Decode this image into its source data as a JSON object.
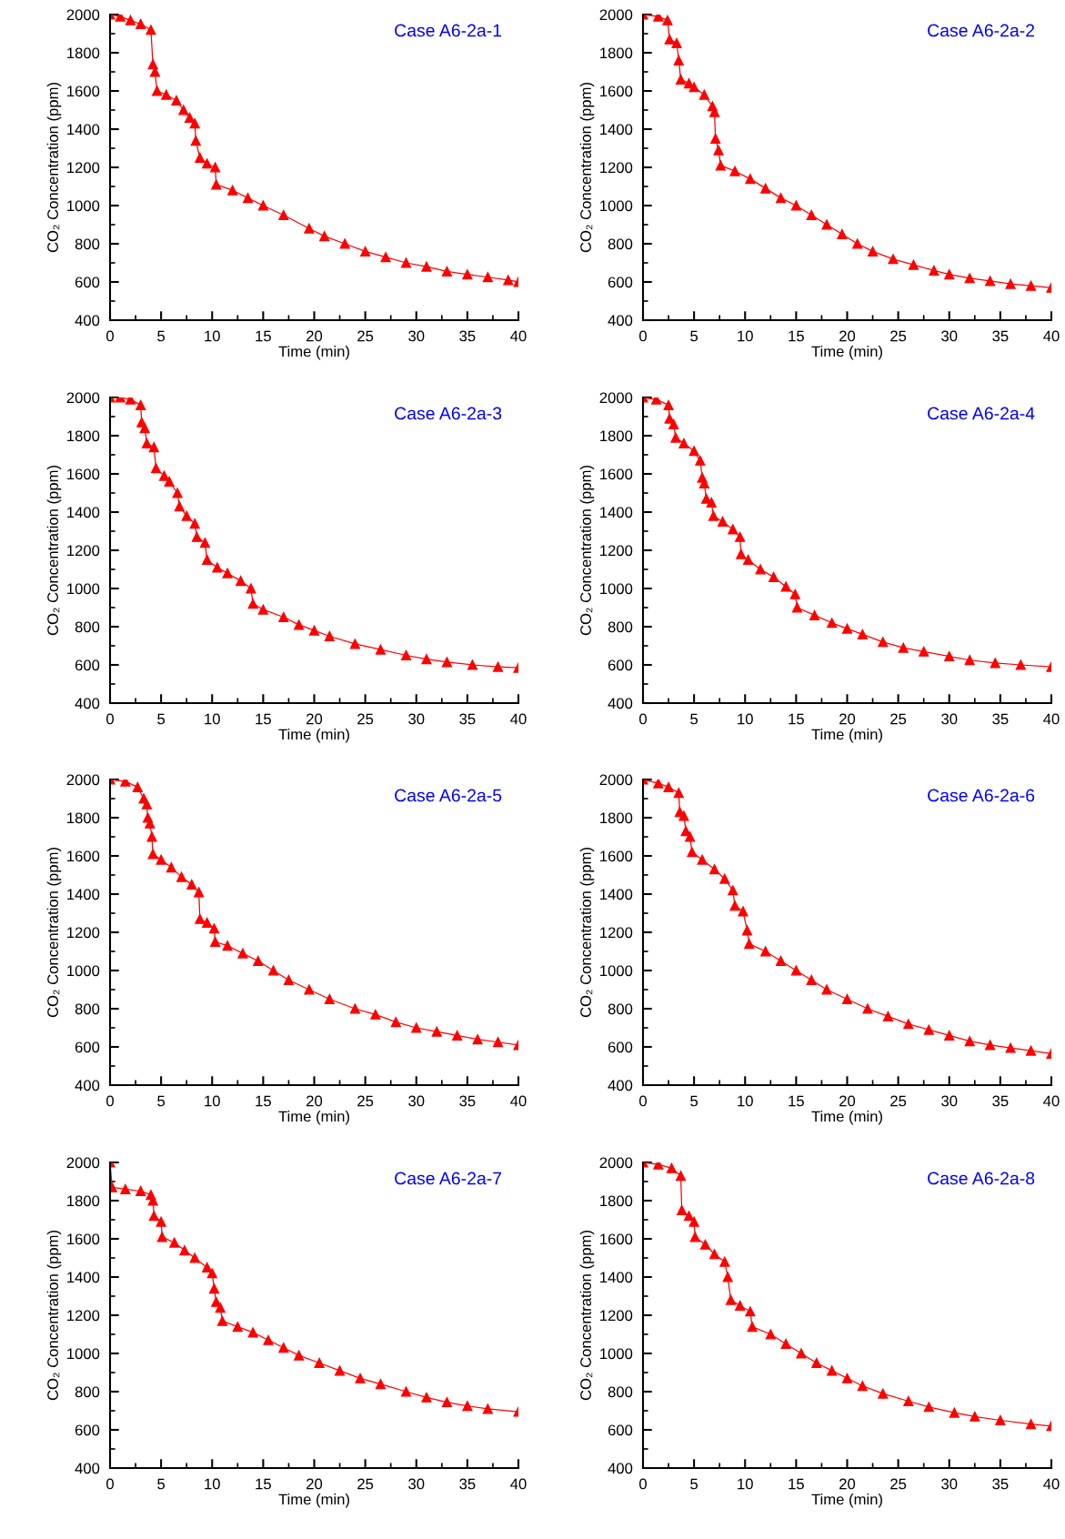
{
  "chart_data": [
    {
      "type": "line",
      "title": "Case A6-2a-1",
      "xlabel": "Time (min)",
      "ylabel": "CO₂ Concentration (ppm)",
      "marker": "triangle",
      "xlim": [
        0,
        40
      ],
      "xticks": [
        0,
        5,
        10,
        15,
        20,
        25,
        30,
        35,
        40
      ],
      "ylim": [
        400,
        2000
      ],
      "yticks": [
        400,
        600,
        800,
        1000,
        1200,
        1400,
        1600,
        1800,
        2000
      ],
      "series": [
        {
          "color": "#ff0000",
          "x": [
            0,
            1,
            2,
            3,
            4,
            4.2,
            4.4,
            4.6,
            5.5,
            6.5,
            7.2,
            7.8,
            8.3,
            8.4,
            8.8,
            9.5,
            10.3,
            10.4,
            12,
            13.5,
            15,
            17,
            19.5,
            21,
            23,
            25,
            27,
            29,
            31,
            33,
            35,
            37,
            39,
            40
          ],
          "values": [
            2000,
            1990,
            1970,
            1950,
            1920,
            1740,
            1700,
            1600,
            1580,
            1550,
            1500,
            1460,
            1430,
            1340,
            1250,
            1220,
            1200,
            1110,
            1080,
            1040,
            1000,
            950,
            880,
            840,
            800,
            760,
            730,
            700,
            680,
            655,
            640,
            625,
            610,
            600
          ]
        }
      ]
    },
    {
      "type": "line",
      "title": "Case A6-2a-2",
      "xlabel": "Time (min)",
      "ylabel": "CO₂ Concentration (ppm)",
      "marker": "triangle",
      "xlim": [
        0,
        40
      ],
      "xticks": [
        0,
        5,
        10,
        15,
        20,
        25,
        30,
        35,
        40
      ],
      "ylim": [
        400,
        2000
      ],
      "yticks": [
        400,
        600,
        800,
        1000,
        1200,
        1400,
        1600,
        1800,
        2000
      ],
      "series": [
        {
          "color": "#ff0000",
          "x": [
            0,
            1.5,
            2.4,
            2.6,
            3.3,
            3.5,
            3.7,
            4.5,
            5,
            6,
            6.8,
            7,
            7.1,
            7.4,
            7.6,
            9,
            10.5,
            12,
            13.5,
            15,
            16.5,
            18,
            19.5,
            21,
            22.5,
            24.5,
            26.5,
            28.5,
            30,
            32,
            34,
            36,
            38,
            40
          ],
          "values": [
            2000,
            1990,
            1970,
            1870,
            1850,
            1760,
            1660,
            1640,
            1620,
            1580,
            1520,
            1490,
            1350,
            1290,
            1210,
            1180,
            1140,
            1090,
            1040,
            1000,
            950,
            900,
            850,
            800,
            760,
            720,
            690,
            660,
            640,
            620,
            605,
            590,
            580,
            570
          ]
        }
      ]
    },
    {
      "type": "line",
      "title": "Case A6-2a-3",
      "xlabel": "Time (min)",
      "ylabel": "CO₂ Concentration (ppm)",
      "marker": "triangle",
      "xlim": [
        0,
        40
      ],
      "xticks": [
        0,
        5,
        10,
        15,
        20,
        25,
        30,
        35,
        40
      ],
      "ylim": [
        400,
        2000
      ],
      "yticks": [
        400,
        600,
        800,
        1000,
        1200,
        1400,
        1600,
        1800,
        2000
      ],
      "series": [
        {
          "color": "#ff0000",
          "x": [
            0,
            1,
            2,
            3,
            3.1,
            3.4,
            3.6,
            4.3,
            4.5,
            5.3,
            5.8,
            6.6,
            6.8,
            7.5,
            8.3,
            8.5,
            9.3,
            9.5,
            10.5,
            11.5,
            12.8,
            13.8,
            14,
            15,
            17,
            18.5,
            20,
            21.5,
            24,
            26.5,
            29,
            31,
            33,
            35.5,
            38,
            40
          ],
          "values": [
            2000,
            2000,
            1990,
            1960,
            1870,
            1840,
            1760,
            1740,
            1630,
            1590,
            1560,
            1500,
            1430,
            1380,
            1340,
            1270,
            1240,
            1150,
            1110,
            1080,
            1040,
            1000,
            920,
            890,
            850,
            810,
            780,
            750,
            710,
            680,
            650,
            630,
            615,
            600,
            590,
            585
          ]
        }
      ]
    },
    {
      "type": "line",
      "title": "Case A6-2a-4",
      "xlabel": "Time (min)",
      "ylabel": "CO₂ Concentration (ppm)",
      "marker": "triangle",
      "xlim": [
        0,
        40
      ],
      "xticks": [
        0,
        5,
        10,
        15,
        20,
        25,
        30,
        35,
        40
      ],
      "ylim": [
        400,
        2000
      ],
      "yticks": [
        400,
        600,
        800,
        1000,
        1200,
        1400,
        1600,
        1800,
        2000
      ],
      "series": [
        {
          "color": "#ff0000",
          "x": [
            0,
            1.3,
            2.5,
            2.6,
            3,
            3.2,
            4,
            5,
            5.6,
            5.8,
            6,
            6.2,
            6.7,
            6.9,
            7.8,
            8.8,
            9.5,
            9.6,
            10.3,
            11.5,
            12.8,
            14,
            14.9,
            15.1,
            16.8,
            18.5,
            20,
            21.5,
            23.5,
            25.5,
            27.5,
            30,
            32,
            34.5,
            37,
            40
          ],
          "values": [
            2000,
            1990,
            1960,
            1890,
            1860,
            1790,
            1760,
            1720,
            1670,
            1580,
            1550,
            1470,
            1450,
            1380,
            1350,
            1310,
            1270,
            1180,
            1150,
            1100,
            1060,
            1010,
            970,
            900,
            860,
            820,
            790,
            760,
            720,
            690,
            670,
            645,
            625,
            610,
            600,
            590
          ]
        }
      ]
    },
    {
      "type": "line",
      "title": "Case A6-2a-5",
      "xlabel": "Time (min)",
      "ylabel": "CO₂ Concentration (ppm)",
      "marker": "triangle",
      "xlim": [
        0,
        40
      ],
      "xticks": [
        0,
        5,
        10,
        15,
        20,
        25,
        30,
        35,
        40
      ],
      "ylim": [
        400,
        2000
      ],
      "yticks": [
        400,
        600,
        800,
        1000,
        1200,
        1400,
        1600,
        1800,
        2000
      ],
      "series": [
        {
          "color": "#ff0000",
          "x": [
            0,
            1.5,
            2.7,
            3.3,
            3.6,
            3.7,
            3.9,
            4.1,
            4.2,
            5,
            6,
            7,
            8,
            8.7,
            8.8,
            9.5,
            10.2,
            10.3,
            11.5,
            13,
            14.5,
            16,
            17.5,
            19.5,
            21.5,
            24,
            26,
            28,
            30,
            32,
            34,
            36,
            38,
            40
          ],
          "values": [
            2000,
            1990,
            1960,
            1900,
            1870,
            1800,
            1770,
            1700,
            1610,
            1580,
            1540,
            1490,
            1450,
            1410,
            1270,
            1250,
            1220,
            1150,
            1130,
            1090,
            1050,
            1000,
            950,
            900,
            850,
            800,
            770,
            730,
            700,
            680,
            660,
            640,
            625,
            610
          ]
        }
      ]
    },
    {
      "type": "line",
      "title": "Case A6-2a-6",
      "xlabel": "Time (min)",
      "ylabel": "CO₂ Concentration (ppm)",
      "marker": "triangle",
      "xlim": [
        0,
        40
      ],
      "xticks": [
        0,
        5,
        10,
        15,
        20,
        25,
        30,
        35,
        40
      ],
      "ylim": [
        400,
        2000
      ],
      "yticks": [
        400,
        600,
        800,
        1000,
        1200,
        1400,
        1600,
        1800,
        2000
      ],
      "series": [
        {
          "color": "#ff0000",
          "x": [
            0,
            1.5,
            2.5,
            3.5,
            3.6,
            4,
            4.2,
            4.6,
            4.8,
            5.8,
            7,
            8,
            8.8,
            9,
            9.8,
            10.2,
            10.4,
            12,
            13.5,
            15,
            16.5,
            18,
            20,
            22,
            24,
            26,
            28,
            30,
            32,
            34,
            36,
            38,
            40
          ],
          "values": [
            2000,
            1980,
            1960,
            1930,
            1830,
            1810,
            1730,
            1700,
            1620,
            1580,
            1530,
            1480,
            1420,
            1340,
            1310,
            1210,
            1140,
            1100,
            1050,
            1000,
            950,
            900,
            850,
            800,
            760,
            720,
            690,
            660,
            630,
            610,
            595,
            580,
            565
          ]
        }
      ]
    },
    {
      "type": "line",
      "title": "Case A6-2a-7",
      "xlabel": "Time (min)",
      "ylabel": "CO₂ Concentration (ppm)",
      "marker": "triangle",
      "xlim": [
        0,
        40
      ],
      "xticks": [
        0,
        5,
        10,
        15,
        20,
        25,
        30,
        35,
        40
      ],
      "ylim": [
        400,
        2000
      ],
      "yticks": [
        400,
        600,
        800,
        1000,
        1200,
        1400,
        1600,
        1800,
        2000
      ],
      "series": [
        {
          "color": "#ff0000",
          "x": [
            0,
            0.2,
            1.5,
            3,
            4,
            4.2,
            4.3,
            5,
            5.1,
            6.3,
            7.3,
            8.3,
            9.5,
            10,
            10.2,
            10.4,
            10.8,
            11,
            12.5,
            14,
            15.5,
            17,
            18.5,
            20.5,
            22.5,
            24.5,
            26.5,
            29,
            31,
            33,
            35,
            37,
            40
          ],
          "values": [
            2000,
            1870,
            1860,
            1850,
            1830,
            1800,
            1720,
            1690,
            1610,
            1580,
            1540,
            1500,
            1450,
            1420,
            1340,
            1270,
            1240,
            1170,
            1140,
            1110,
            1070,
            1030,
            990,
            950,
            910,
            870,
            840,
            800,
            770,
            745,
            725,
            710,
            695
          ]
        }
      ]
    },
    {
      "type": "line",
      "title": "Case A6-2a-8",
      "xlabel": "Time (min)",
      "ylabel": "CO₂ Concentration (ppm)",
      "marker": "triangle",
      "xlim": [
        0,
        40
      ],
      "xticks": [
        0,
        5,
        10,
        15,
        20,
        25,
        30,
        35,
        40
      ],
      "ylim": [
        400,
        2000
      ],
      "yticks": [
        400,
        600,
        800,
        1000,
        1200,
        1400,
        1600,
        1800,
        2000
      ],
      "series": [
        {
          "color": "#ff0000",
          "x": [
            0,
            1.5,
            2.8,
            3.7,
            3.8,
            4.5,
            5,
            5.1,
            6.1,
            7,
            8,
            8.3,
            8.6,
            9.5,
            10.5,
            10.7,
            12.5,
            14,
            15.5,
            17,
            18.5,
            20,
            21.5,
            23.5,
            26,
            28,
            30.5,
            32.5,
            35,
            38,
            40
          ],
          "values": [
            2000,
            1990,
            1970,
            1930,
            1750,
            1720,
            1690,
            1610,
            1570,
            1520,
            1480,
            1400,
            1280,
            1250,
            1220,
            1140,
            1100,
            1050,
            1000,
            950,
            910,
            870,
            830,
            790,
            750,
            720,
            690,
            670,
            650,
            630,
            620
          ]
        }
      ]
    }
  ]
}
